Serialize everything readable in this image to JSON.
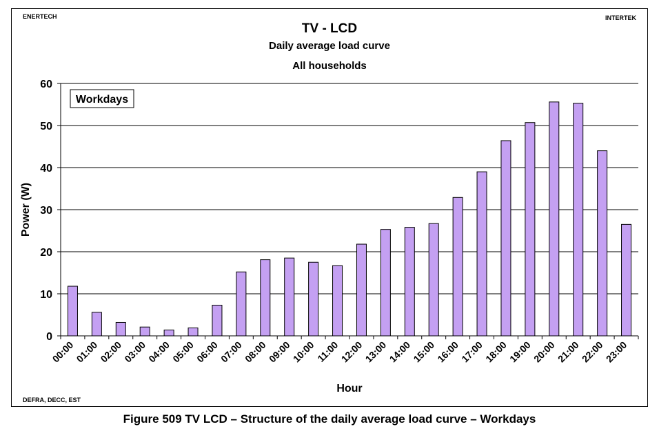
{
  "header": {
    "left_label": "ENERTECH",
    "right_label": "INTERTEK",
    "footer_label": "DEFRA, DECC, EST"
  },
  "caption": "Figure 509 TV LCD – Structure of the daily average load curve – Workdays",
  "colors": {
    "bar_fill": "#c4a0f2",
    "bar_stroke": "#000000",
    "grid": "#000000"
  },
  "chart_data": {
    "type": "bar",
    "title": "TV - LCD",
    "subtitle": [
      "Daily average load curve",
      "All households"
    ],
    "legend_box": "Workdays",
    "legend_placement": "top-left",
    "xlabel": "Hour",
    "ylabel": "Power (W)",
    "ylim": [
      0,
      60
    ],
    "yticks": [
      0,
      10,
      20,
      30,
      40,
      50,
      60
    ],
    "grid": true,
    "categories": [
      "00:00",
      "01:00",
      "02:00",
      "03:00",
      "04:00",
      "05:00",
      "06:00",
      "07:00",
      "08:00",
      "09:00",
      "10:00",
      "11:00",
      "12:00",
      "13:00",
      "14:00",
      "15:00",
      "16:00",
      "17:00",
      "18:00",
      "19:00",
      "20:00",
      "21:00",
      "22:00",
      "23:00"
    ],
    "values": [
      11.8,
      5.6,
      3.2,
      2.1,
      1.4,
      1.9,
      7.3,
      15.2,
      18.1,
      18.5,
      17.5,
      16.7,
      21.8,
      25.3,
      25.8,
      26.7,
      32.9,
      39.0,
      46.4,
      50.7,
      55.6,
      55.3,
      44.0,
      26.5
    ]
  }
}
